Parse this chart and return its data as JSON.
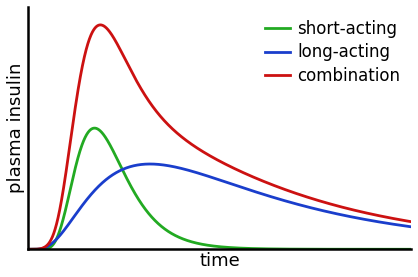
{
  "title": "",
  "xlabel": "time",
  "ylabel": "plasma insulin",
  "background_color": "#ffffff",
  "short_acting": {
    "label": "short-acting",
    "color": "#22aa22",
    "mu": 0.7,
    "sigma": 0.38,
    "scale": 0.54
  },
  "long_acting": {
    "label": "long-acting",
    "color": "#1a3ecc",
    "mu": 1.65,
    "sigma": 0.7,
    "scale": 0.38
  },
  "combination": {
    "label": "combination",
    "color": "#cc1111"
  },
  "legend_fontsize": 12,
  "axis_label_fontsize": 13,
  "linewidth": 2.0,
  "xlim": [
    0,
    10
  ],
  "ylim": [
    0,
    1.08
  ]
}
